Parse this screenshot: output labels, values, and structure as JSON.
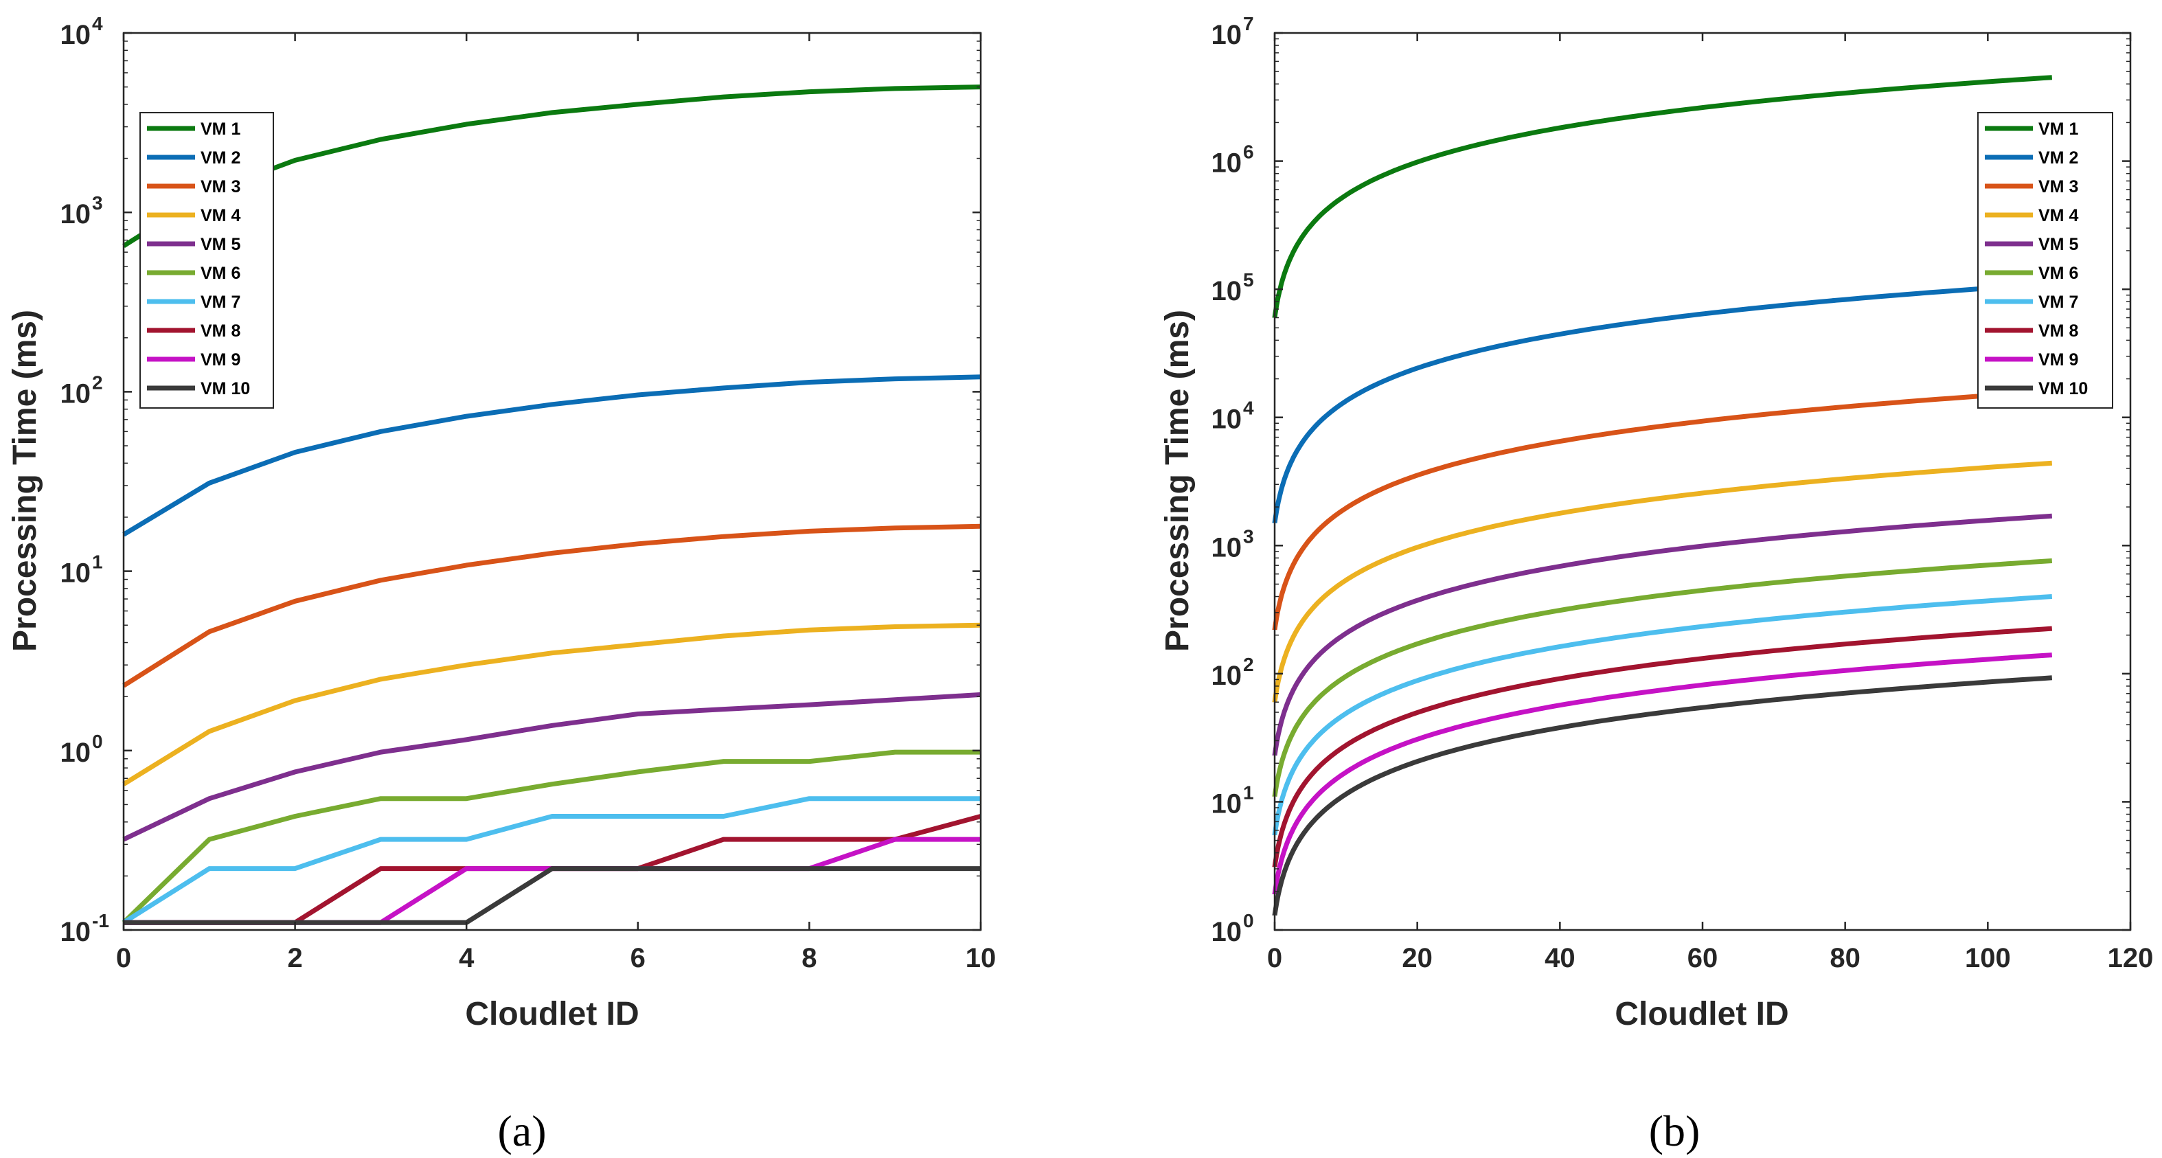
{
  "chart_data": [
    {
      "type": "line",
      "caption": "(a)",
      "xlabel": "Cloudlet ID",
      "ylabel": "Processing Time (ms)",
      "yscale": "log",
      "xlim": [
        0,
        10
      ],
      "ylim": [
        0.1,
        10000
      ],
      "xticks": [
        0,
        2,
        4,
        6,
        8,
        10
      ],
      "xtick_labels": [
        "0",
        "2",
        "4",
        "6",
        "8",
        "10"
      ],
      "ytick_exponents": [
        "-1",
        "0",
        "1",
        "2",
        "3",
        "4"
      ],
      "ytick_base": "10",
      "legend_position": "top-left",
      "x": [
        0,
        1,
        2,
        3,
        4,
        5,
        6,
        7,
        8,
        9,
        10
      ],
      "series": [
        {
          "name": "VM 1",
          "color": "#0b7a10",
          "values": [
            650,
            1300,
            1950,
            2550,
            3100,
            3600,
            4000,
            4400,
            4700,
            4900,
            5000
          ]
        },
        {
          "name": "VM 2",
          "color": "#0b6db5",
          "values": [
            16,
            31,
            46,
            60,
            73,
            85,
            96,
            105,
            113,
            118,
            121
          ]
        },
        {
          "name": "VM 3",
          "color": "#d85318",
          "values": [
            2.3,
            4.6,
            6.8,
            8.9,
            10.8,
            12.6,
            14.2,
            15.6,
            16.7,
            17.4,
            17.8
          ]
        },
        {
          "name": "VM 4",
          "color": "#ecb120",
          "values": [
            0.65,
            1.28,
            1.9,
            2.5,
            3.0,
            3.5,
            3.9,
            4.35,
            4.7,
            4.9,
            5.0
          ]
        },
        {
          "name": "VM 5",
          "color": "#7e2f8e",
          "values": [
            0.32,
            0.54,
            0.76,
            0.98,
            1.15,
            1.38,
            1.6,
            1.7,
            1.8,
            1.92,
            2.05
          ]
        },
        {
          "name": "VM 6",
          "color": "#78ab30",
          "values": [
            0.11,
            0.32,
            0.43,
            0.54,
            0.54,
            0.65,
            0.76,
            0.87,
            0.87,
            0.98,
            0.98
          ]
        },
        {
          "name": "VM 7",
          "color": "#4dbeee",
          "values": [
            0.11,
            0.22,
            0.22,
            0.32,
            0.32,
            0.43,
            0.43,
            0.43,
            0.54,
            0.54,
            0.54
          ]
        },
        {
          "name": "VM 8",
          "color": "#a2142f",
          "values": [
            0.11,
            0.11,
            0.11,
            0.22,
            0.22,
            0.22,
            0.22,
            0.32,
            0.32,
            0.32,
            0.43
          ]
        },
        {
          "name": "VM 9",
          "color": "#c512c5",
          "values": [
            0.11,
            0.11,
            0.11,
            0.11,
            0.22,
            0.22,
            0.22,
            0.22,
            0.22,
            0.32,
            0.32
          ]
        },
        {
          "name": "VM 10",
          "color": "#3a3a3a",
          "values": [
            0.11,
            0.11,
            0.11,
            0.11,
            0.11,
            0.22,
            0.22,
            0.22,
            0.22,
            0.22,
            0.22
          ]
        }
      ]
    },
    {
      "type": "line",
      "caption": "(b)",
      "xlabel": "Cloudlet ID",
      "ylabel": "Processing Time (ms)",
      "yscale": "log",
      "xlim": [
        0,
        120
      ],
      "ylim": [
        1,
        10000000
      ],
      "xticks": [
        0,
        20,
        40,
        60,
        80,
        100,
        120
      ],
      "xtick_labels": [
        "0",
        "20",
        "40",
        "60",
        "80",
        "100",
        "120"
      ],
      "ytick_exponents": [
        "0",
        "1",
        "2",
        "3",
        "4",
        "5",
        "6",
        "7"
      ],
      "ytick_base": "10",
      "legend_position": "top-right",
      "x_range": [
        0,
        109
      ],
      "series": [
        {
          "name": "VM 1",
          "color": "#0b7a10",
          "start": 60000,
          "end": 4500000
        },
        {
          "name": "VM 2",
          "color": "#0b6db5",
          "start": 1500,
          "end": 110000
        },
        {
          "name": "VM 3",
          "color": "#d85318",
          "start": 220,
          "end": 16000
        },
        {
          "name": "VM 4",
          "color": "#ecb120",
          "start": 60,
          "end": 4400
        },
        {
          "name": "VM 5",
          "color": "#7e2f8e",
          "start": 23,
          "end": 1700
        },
        {
          "name": "VM 6",
          "color": "#78ab30",
          "start": 11,
          "end": 760
        },
        {
          "name": "VM 7",
          "color": "#4dbeee",
          "start": 5.5,
          "end": 400
        },
        {
          "name": "VM 8",
          "color": "#a2142f",
          "start": 3.1,
          "end": 225
        },
        {
          "name": "VM 9",
          "color": "#c512c5",
          "start": 1.9,
          "end": 140
        },
        {
          "name": "VM 10",
          "color": "#3a3a3a",
          "start": 1.3,
          "end": 93
        }
      ]
    }
  ]
}
